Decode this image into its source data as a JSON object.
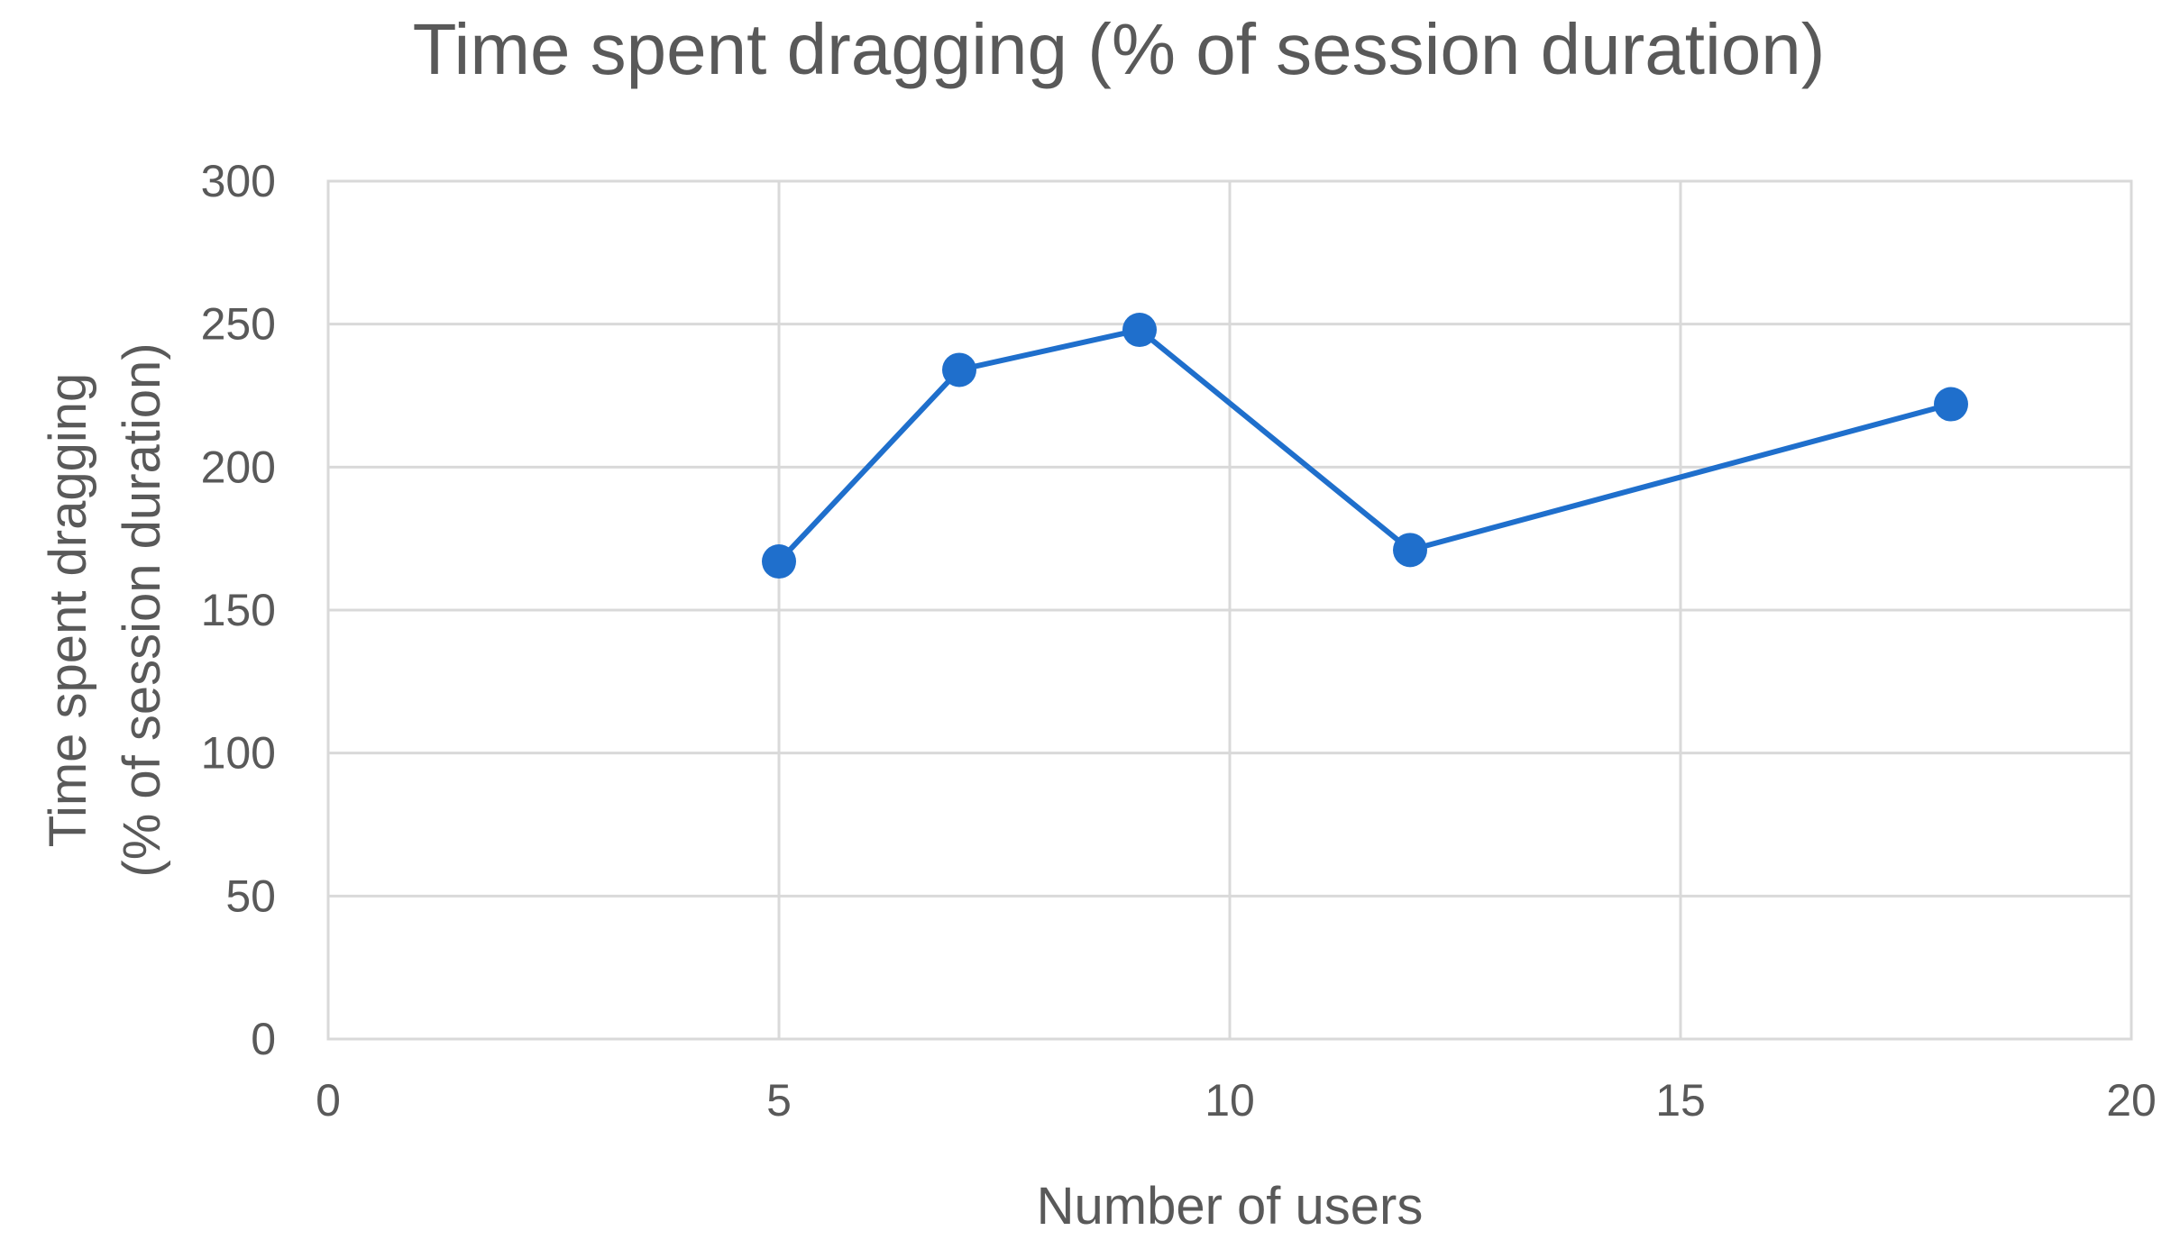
{
  "chart_data": {
    "type": "scatter",
    "mode": "lines+markers",
    "title": "Time spent dragging (% of session duration)",
    "xlabel": "Number of users",
    "ylabel": [
      "Time spent dragging",
      "(% of session duration)"
    ],
    "xlim": [
      0,
      20
    ],
    "ylim": [
      0,
      300
    ],
    "x_ticks": [
      0,
      5,
      10,
      15,
      20
    ],
    "y_ticks": [
      0,
      50,
      100,
      150,
      200,
      250,
      300
    ],
    "grid": true,
    "legend": "none",
    "series": [
      {
        "color": "#1f6fcc",
        "x": [
          5,
          7,
          9,
          12,
          18
        ],
        "y": [
          167,
          234,
          248,
          171,
          222
        ]
      }
    ]
  },
  "colors": {
    "text": "#595959",
    "grid": "#d9d9d9",
    "series": "#1f6fcc"
  }
}
